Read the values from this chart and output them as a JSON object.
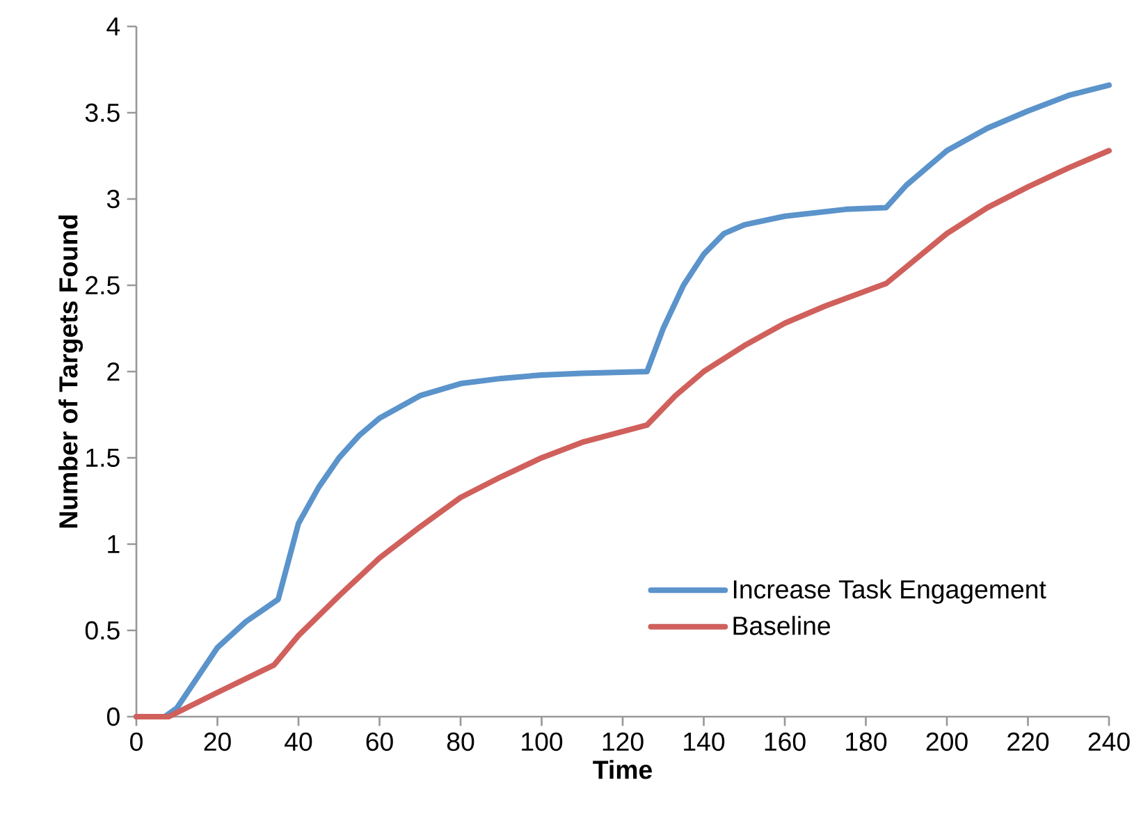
{
  "chart_data": {
    "type": "line",
    "xlabel": "Time",
    "ylabel": "Number of Targets Found",
    "xlim": [
      0,
      240
    ],
    "xticks": [
      0,
      20,
      40,
      60,
      80,
      100,
      120,
      140,
      160,
      180,
      200,
      220,
      240
    ],
    "ylim": [
      0,
      4
    ],
    "yticks": [
      0,
      0.5,
      1,
      1.5,
      2,
      2.5,
      3,
      3.5,
      4
    ],
    "grid": false,
    "legend": "bottom right",
    "marker": "none",
    "line_style": "solid",
    "series": [
      {
        "name": "Increase Task Engagement",
        "color": "#5b93cb",
        "x": [
          0,
          7,
          10,
          20,
          27,
          35,
          40,
          45,
          50,
          55,
          60,
          70,
          80,
          90,
          100,
          110,
          126,
          130,
          135,
          140,
          145,
          150,
          160,
          175,
          185,
          190,
          200,
          210,
          220,
          230,
          240
        ],
        "values": [
          0,
          0,
          0.05,
          0.4,
          0.55,
          0.68,
          1.12,
          1.33,
          1.5,
          1.63,
          1.73,
          1.86,
          1.93,
          1.96,
          1.98,
          1.99,
          2.0,
          2.25,
          2.5,
          2.68,
          2.8,
          2.85,
          2.9,
          2.94,
          2.95,
          3.08,
          3.28,
          3.41,
          3.51,
          3.6,
          3.66
        ]
      },
      {
        "name": "Baseline",
        "color": "#d0605c",
        "x": [
          0,
          8,
          20,
          34,
          40,
          50,
          60,
          70,
          80,
          90,
          100,
          110,
          126,
          133,
          140,
          150,
          160,
          170,
          185,
          200,
          210,
          220,
          230,
          240
        ],
        "values": [
          0,
          0,
          0.14,
          0.3,
          0.47,
          0.7,
          0.92,
          1.1,
          1.27,
          1.39,
          1.5,
          1.59,
          1.69,
          1.86,
          2.0,
          2.15,
          2.28,
          2.38,
          2.51,
          2.8,
          2.95,
          3.07,
          3.18,
          3.28
        ]
      }
    ]
  }
}
